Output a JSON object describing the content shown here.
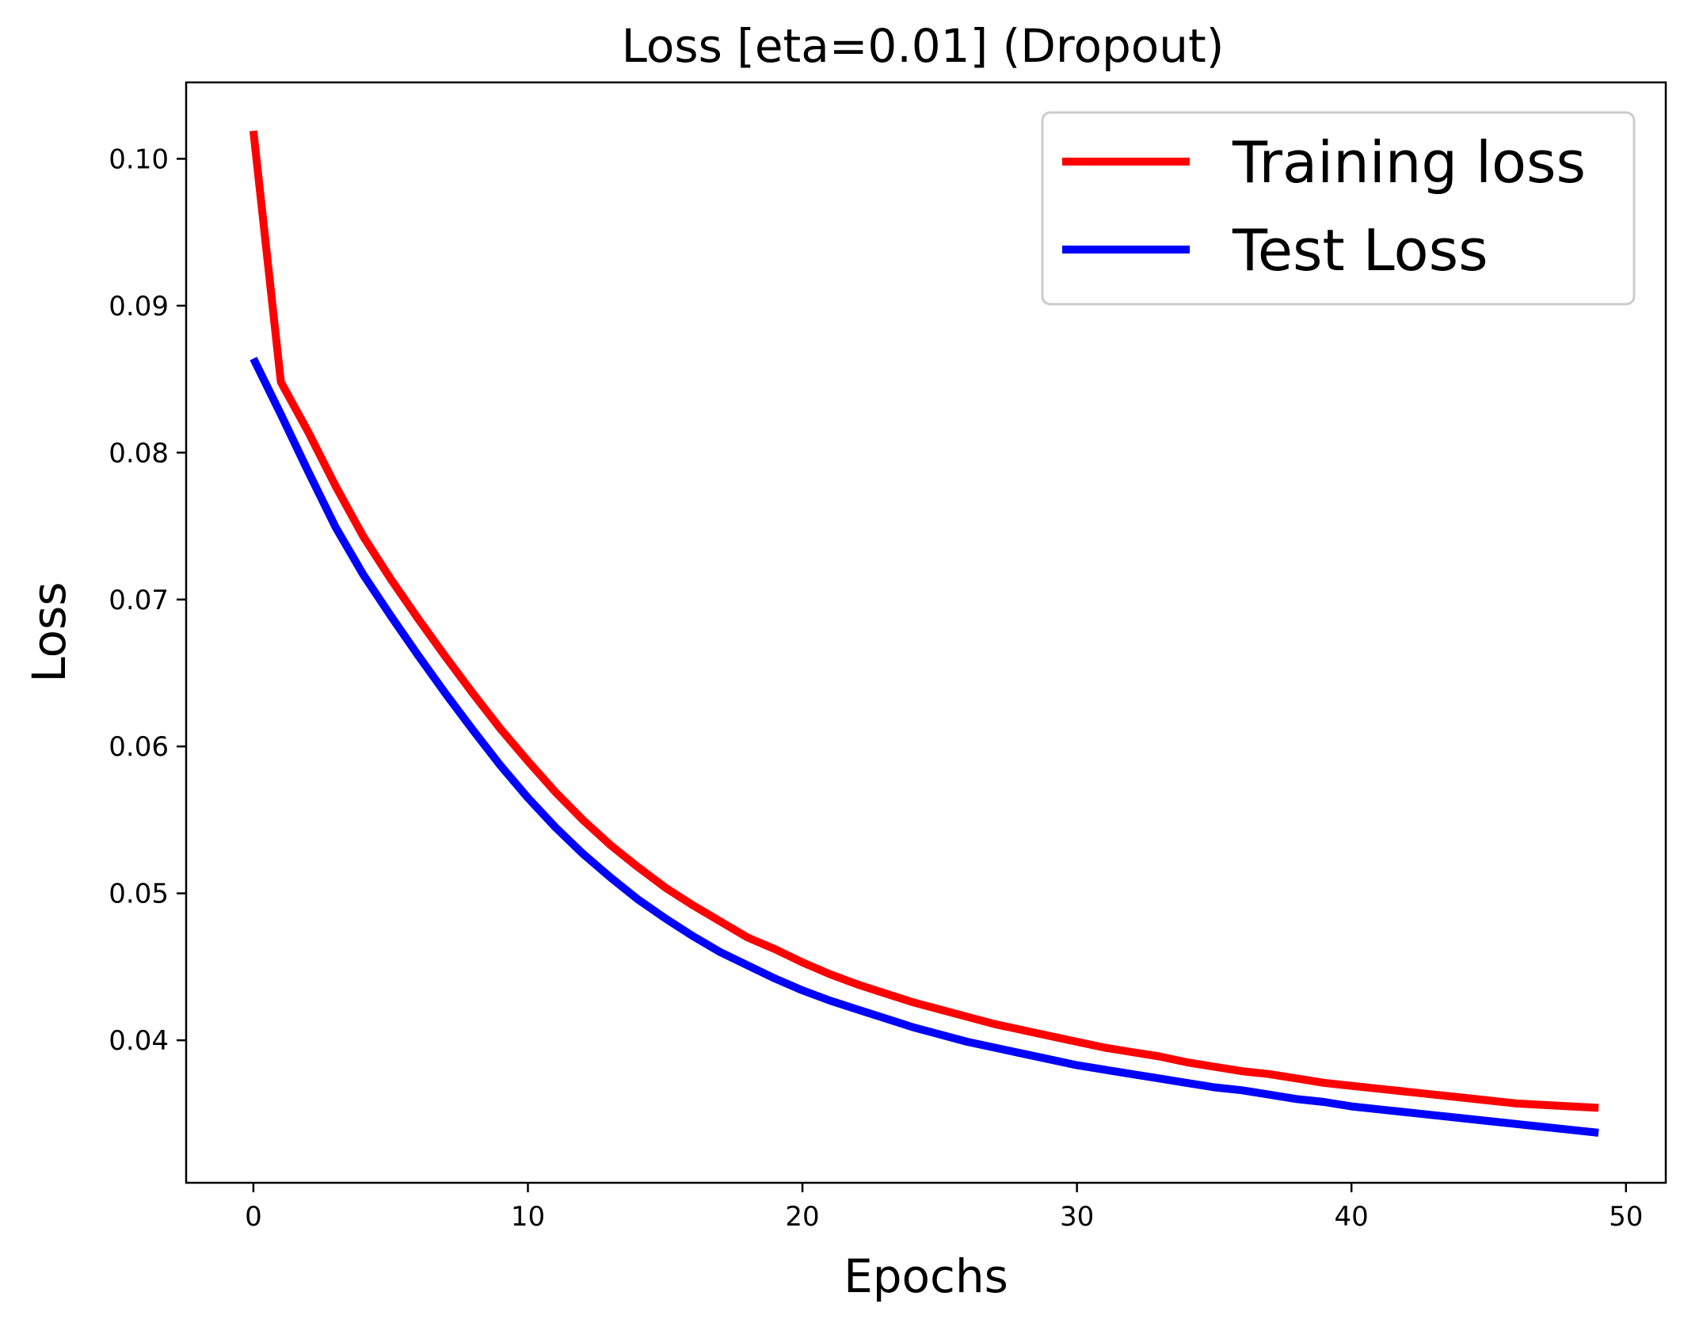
{
  "chart_data": {
    "type": "line",
    "title": "Loss [eta=0.01] (Dropout)",
    "xlabel": "Epochs",
    "ylabel": "Loss",
    "xlim": [
      -2.45,
      51.45
    ],
    "ylim": [
      0.0303,
      0.1052
    ],
    "xticks": [
      0,
      10,
      20,
      30,
      40,
      50
    ],
    "yticks": [
      0.04,
      0.05,
      0.06,
      0.07,
      0.08,
      0.09,
      0.1
    ],
    "xtick_labels": [
      "0",
      "10",
      "20",
      "30",
      "40",
      "50"
    ],
    "ytick_labels": [
      "0.04",
      "0.05",
      "0.06",
      "0.07",
      "0.08",
      "0.09",
      "0.10"
    ],
    "grid": false,
    "legend_position": "top-right",
    "x": [
      0,
      1,
      2,
      3,
      4,
      5,
      6,
      7,
      8,
      9,
      10,
      11,
      12,
      13,
      14,
      15,
      16,
      17,
      18,
      19,
      20,
      21,
      22,
      23,
      24,
      25,
      26,
      27,
      28,
      29,
      30,
      31,
      32,
      33,
      34,
      35,
      36,
      37,
      38,
      39,
      40,
      41,
      42,
      43,
      44,
      45,
      46,
      47,
      48,
      49
    ],
    "series": [
      {
        "name": "Training loss",
        "color": "#ff0000",
        "values": [
          0.1019,
          0.0848,
          0.0814,
          0.0777,
          0.0743,
          0.0714,
          0.0687,
          0.0661,
          0.0636,
          0.0612,
          0.059,
          0.0569,
          0.055,
          0.0533,
          0.0518,
          0.0504,
          0.0492,
          0.0481,
          0.047,
          0.0462,
          0.0453,
          0.0445,
          0.0438,
          0.0432,
          0.0426,
          0.0421,
          0.0416,
          0.0411,
          0.0407,
          0.0403,
          0.0399,
          0.0395,
          0.0392,
          0.0389,
          0.0385,
          0.0382,
          0.0379,
          0.0377,
          0.0374,
          0.0371,
          0.0369,
          0.0367,
          0.0365,
          0.0363,
          0.0361,
          0.0359,
          0.0357,
          0.0356,
          0.0355,
          0.0354
        ]
      },
      {
        "name": "Test Loss",
        "color": "#0000ff",
        "values": [
          0.0864,
          0.0826,
          0.0787,
          0.0749,
          0.0717,
          0.0689,
          0.0662,
          0.0636,
          0.0611,
          0.0587,
          0.0565,
          0.0545,
          0.0527,
          0.0511,
          0.0496,
          0.0483,
          0.0471,
          0.046,
          0.0451,
          0.0442,
          0.0434,
          0.0427,
          0.0421,
          0.0415,
          0.0409,
          0.0404,
          0.0399,
          0.0395,
          0.0391,
          0.0387,
          0.0383,
          0.038,
          0.0377,
          0.0374,
          0.0371,
          0.0368,
          0.0366,
          0.0363,
          0.036,
          0.0358,
          0.0355,
          0.0353,
          0.0351,
          0.0349,
          0.0347,
          0.0345,
          0.0343,
          0.0341,
          0.0339,
          0.0337
        ]
      }
    ]
  }
}
